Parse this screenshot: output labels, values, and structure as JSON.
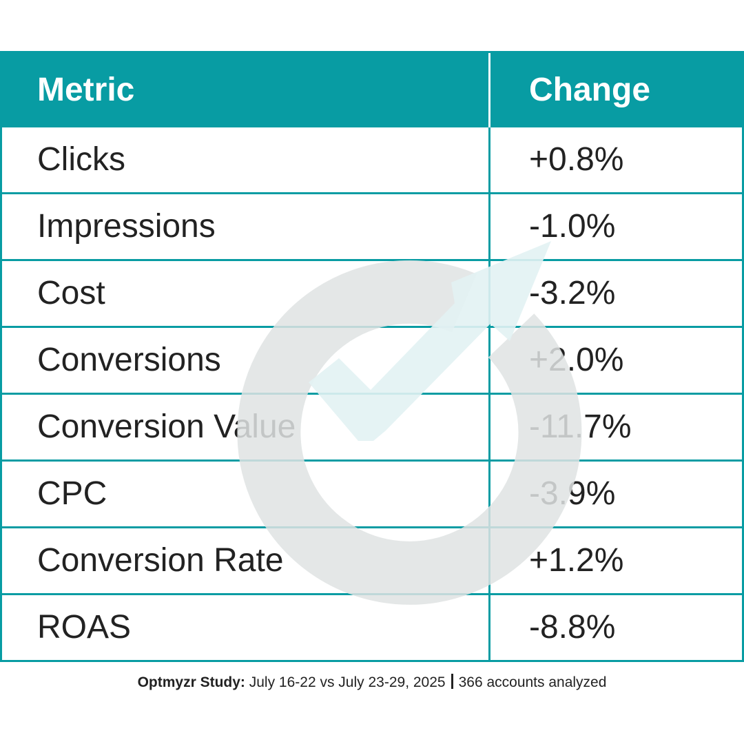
{
  "chart_data": {
    "type": "table",
    "columns": [
      "Metric",
      "Change"
    ],
    "rows": [
      [
        "Clicks",
        "+0.8%"
      ],
      [
        "Impressions",
        "-1.0%"
      ],
      [
        "Cost",
        "-3.2%"
      ],
      [
        "Conversions",
        "+2.0%"
      ],
      [
        "Conversion Value",
        "-11.7%"
      ],
      [
        "CPC",
        "-3.9%"
      ],
      [
        "Conversion Rate",
        "+1.2%"
      ],
      [
        "ROAS",
        "-8.8%"
      ]
    ]
  },
  "footer": {
    "study_label": "Optmyzr Study:",
    "date_range": "July 16-22 vs July 23-29, 2025",
    "accounts": "366 accounts analyzed"
  },
  "colors": {
    "accent": "#089ca3",
    "watermark_ring": "#dfe3e3",
    "watermark_arrow": "#e2f2f3"
  },
  "icons": {
    "watermark": "optmyzr-logo-icon"
  }
}
